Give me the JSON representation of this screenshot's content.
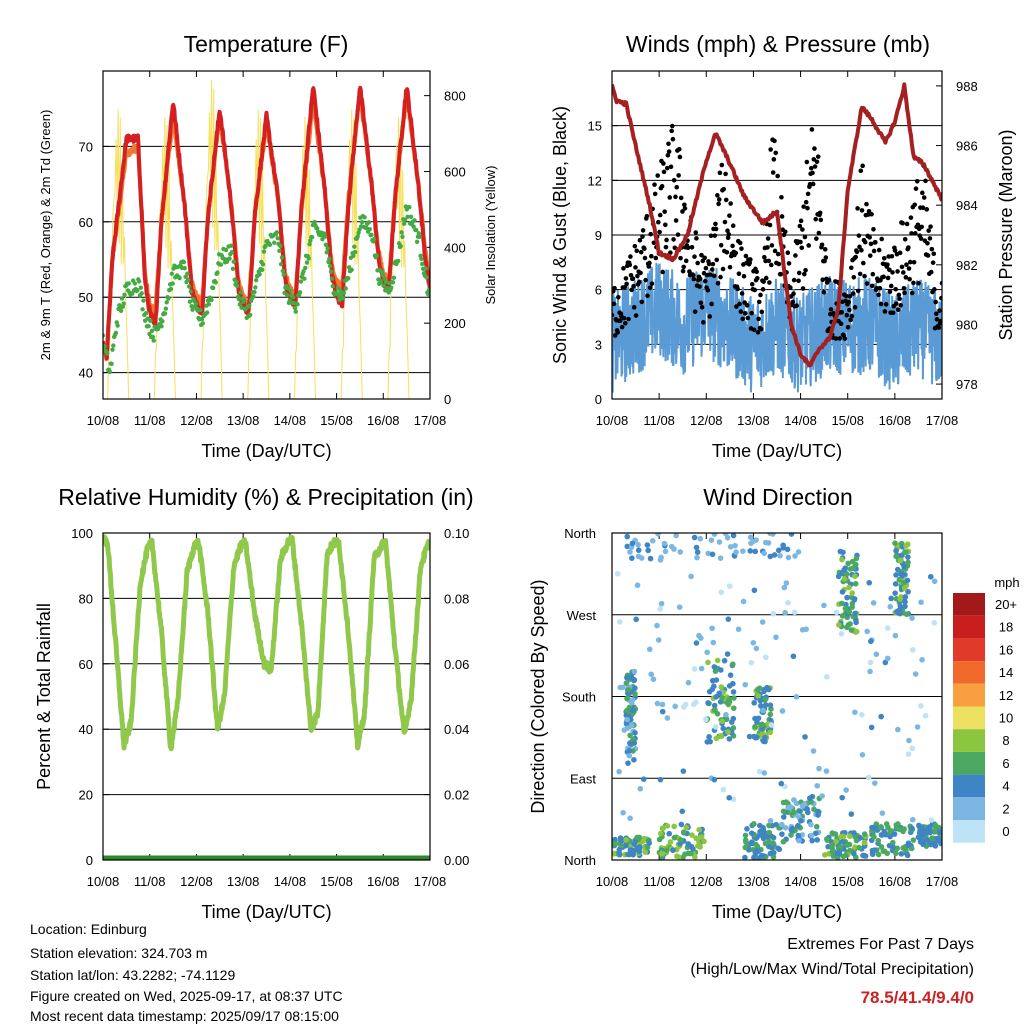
{
  "chart_data": [
    {
      "type": "line",
      "title": "Temperature (F)",
      "xlabel": "Time (Day/UTC)",
      "ylabel": "2m & 9m T (Red, Orange) & 2m Td (Green)",
      "y2label": "Solar Insolation (Yellow)",
      "x_ticks": [
        "10/08",
        "11/08",
        "12/08",
        "13/08",
        "14/08",
        "15/08",
        "16/08",
        "17/08"
      ],
      "ylim": [
        36.5,
        80
      ],
      "y_ticks": [
        40,
        50,
        60,
        70
      ],
      "y2lim": [
        0,
        865
      ],
      "y2_ticks": [
        0,
        200,
        400,
        600,
        800
      ],
      "grid": "horizontal",
      "series": [
        {
          "name": "2m T",
          "color": "#d42020",
          "x": [
            0,
            0.08,
            0.2,
            0.5,
            0.75,
            0.9,
            1.0,
            1.12,
            1.25,
            1.5,
            1.75,
            1.9,
            2.0,
            2.12,
            2.25,
            2.5,
            2.75,
            2.9,
            3.0,
            3.12,
            3.25,
            3.5,
            3.75,
            3.9,
            4.0,
            4.12,
            4.25,
            4.5,
            4.75,
            4.9,
            5.0,
            5.12,
            5.25,
            5.5,
            5.75,
            5.9,
            6.0,
            6.12,
            6.25,
            6.5,
            6.75,
            6.9,
            7.0
          ],
          "y": [
            44,
            42,
            55,
            71,
            71,
            52,
            48,
            46,
            60,
            76,
            62,
            51,
            49,
            48,
            61,
            75,
            62,
            51,
            49,
            48,
            61,
            74,
            63,
            52,
            50,
            49,
            62,
            78,
            64,
            53,
            50,
            49,
            62,
            78,
            65,
            55,
            52,
            51,
            63,
            78,
            65,
            55,
            51
          ]
        },
        {
          "name": "9m T",
          "color": "#f07830",
          "x": [
            0,
            0.08,
            0.2,
            0.5,
            0.75,
            0.9,
            1.0,
            1.12,
            1.25,
            1.5,
            1.75,
            1.9,
            2.0,
            2.12,
            2.25,
            2.5,
            2.75,
            2.9,
            3.0,
            3.12,
            3.25,
            3.5,
            3.75,
            3.9,
            4.0,
            4.12,
            4.25,
            4.5,
            4.75,
            4.9,
            5.0,
            5.12,
            5.25,
            5.5,
            5.75,
            5.9,
            6.0,
            6.12,
            6.25,
            6.5,
            6.75,
            6.9,
            7.0
          ],
          "y": [
            43,
            42,
            55,
            69,
            70,
            53,
            49,
            48,
            60,
            74,
            62,
            52,
            50,
            49,
            61,
            74,
            62,
            52,
            50,
            49,
            61,
            73,
            63,
            53,
            51,
            50,
            62,
            76,
            64,
            54,
            52,
            51,
            63,
            77,
            65,
            56,
            53,
            52,
            63,
            77,
            65,
            56,
            51
          ]
        },
        {
          "name": "2m Td",
          "color": "#44aa44",
          "x": [
            0,
            0.15,
            0.3,
            0.5,
            0.75,
            0.9,
            1.0,
            1.12,
            1.3,
            1.5,
            1.75,
            1.9,
            2.0,
            2.12,
            2.3,
            2.5,
            2.75,
            2.9,
            3.0,
            3.12,
            3.3,
            3.5,
            3.75,
            3.9,
            4.0,
            4.12,
            4.3,
            4.5,
            4.75,
            4.9,
            5.0,
            5.12,
            5.3,
            5.5,
            5.75,
            5.9,
            6.0,
            6.12,
            6.3,
            6.5,
            6.75,
            6.9,
            7.0
          ],
          "y": [
            44,
            40,
            47,
            51,
            52,
            48,
            46,
            45,
            48,
            53,
            54,
            49,
            48,
            47,
            50,
            55,
            56,
            50,
            49,
            48,
            52,
            57,
            58,
            51,
            50,
            49,
            53,
            59,
            58,
            52,
            51,
            50,
            54,
            60,
            59,
            53,
            52,
            51,
            55,
            62,
            58,
            53,
            50
          ]
        },
        {
          "name": "Solar Insolation",
          "color": "#f6e05a",
          "x": [
            0.1,
            0.25,
            0.55,
            0.82,
            1.1,
            1.25,
            1.55,
            1.82,
            2.1,
            2.25,
            2.55,
            2.82,
            3.1,
            3.25,
            3.55,
            3.82,
            4.1,
            4.25,
            4.55,
            4.82,
            5.1,
            5.25,
            5.55,
            5.82,
            6.1,
            6.25,
            6.55,
            6.82
          ],
          "y": [
            0,
            780,
            0,
            0,
            0,
            760,
            0,
            0,
            0,
            860,
            0,
            0,
            0,
            780,
            0,
            0,
            0,
            760,
            0,
            0,
            0,
            780,
            0,
            0,
            0,
            760,
            0,
            0
          ]
        }
      ]
    },
    {
      "type": "line",
      "title": "Winds (mph) & Pressure (mb)",
      "xlabel": "Time (Day/UTC)",
      "ylabel": "Sonic Wind & Gust (Blue, Black)",
      "y2label": "Station Pressure (Maroon)",
      "x_ticks": [
        "10/08",
        "11/08",
        "12/08",
        "13/08",
        "14/08",
        "15/08",
        "16/08",
        "17/08"
      ],
      "ylim": [
        0,
        18
      ],
      "y_ticks": [
        0,
        3,
        6,
        9,
        12,
        15
      ],
      "y2lim": [
        977.5,
        988.5
      ],
      "y2_ticks": [
        978,
        980,
        982,
        984,
        986,
        988
      ],
      "grid": "horizontal",
      "series": [
        {
          "name": "Sonic Wind",
          "color": "#5b9bd5",
          "x": [
            0,
            0.5,
            1.0,
            1.5,
            2.0,
            2.5,
            3.0,
            3.5,
            4.0,
            4.5,
            5.0,
            5.5,
            6.0,
            6.5,
            7.0
          ],
          "y": [
            3,
            4,
            5,
            4,
            5,
            4,
            3,
            4,
            3,
            4,
            4,
            4,
            3,
            4,
            3
          ]
        },
        {
          "name": "Gust",
          "color": "#000000",
          "x": [
            0.1,
            0.5,
            0.8,
            1.3,
            1.5,
            1.7,
            2.0,
            2.4,
            2.7,
            3.2,
            3.4,
            3.8,
            4.3,
            4.6,
            5.0,
            5.3,
            5.6,
            6.0,
            6.3,
            6.6,
            6.9
          ],
          "y": [
            6,
            8,
            10,
            14,
            12,
            9,
            7,
            13,
            8,
            6,
            14,
            6,
            15,
            6,
            6,
            12,
            8,
            8,
            10,
            12,
            6
          ]
        },
        {
          "name": "Station Pressure",
          "color": "#a52020",
          "x": [
            0,
            0.1,
            0.3,
            0.5,
            0.8,
            1.0,
            1.3,
            1.6,
            2.0,
            2.2,
            2.5,
            2.8,
            3.2,
            3.5,
            3.8,
            4.0,
            4.2,
            4.4,
            4.6,
            4.8,
            5.0,
            5.3,
            5.5,
            5.8,
            6.0,
            6.2,
            6.4,
            6.6,
            6.8,
            7.0
          ],
          "y": [
            988,
            987.5,
            987.4,
            986,
            984,
            982.4,
            982.2,
            983,
            985.5,
            986.4,
            985.4,
            984.3,
            983.4,
            983.8,
            980,
            979,
            978.6,
            979.2,
            979.5,
            980.5,
            984.5,
            987.3,
            986.9,
            986.1,
            986.8,
            988,
            985.6,
            985.4,
            984.8,
            984.2
          ]
        }
      ]
    },
    {
      "type": "line",
      "title": "Relative Humidity (%) & Precipitation (in)",
      "xlabel": "Time (Day/UTC)",
      "ylabel": "Percent & Total Rainfall",
      "x_ticks": [
        "10/08",
        "11/08",
        "12/08",
        "13/08",
        "14/08",
        "15/08",
        "16/08",
        "17/08"
      ],
      "ylim": [
        0,
        100
      ],
      "y_ticks": [
        0,
        20,
        40,
        60,
        80,
        100
      ],
      "y2lim": [
        0,
        0.1
      ],
      "y2_ticks": [
        "0.00",
        "0.02",
        "0.04",
        "0.06",
        "0.08",
        "0.10"
      ],
      "grid": "horizontal",
      "series": [
        {
          "name": "Relative Humidity",
          "color": "#8fc84a",
          "x": [
            0,
            0.1,
            0.25,
            0.45,
            0.6,
            0.8,
            0.95,
            1.05,
            1.25,
            1.45,
            1.6,
            1.8,
            1.95,
            2.05,
            2.25,
            2.45,
            2.6,
            2.8,
            2.95,
            3.05,
            3.25,
            3.45,
            3.6,
            3.8,
            3.95,
            4.05,
            4.25,
            4.45,
            4.6,
            4.8,
            4.95,
            5.05,
            5.25,
            5.45,
            5.6,
            5.8,
            5.95,
            6.05,
            6.25,
            6.45,
            6.6,
            6.8,
            6.95,
            7.0
          ],
          "y": [
            98,
            97,
            70,
            35,
            42,
            85,
            95,
            97,
            70,
            34,
            48,
            88,
            96,
            97,
            75,
            40,
            50,
            90,
            96,
            97,
            75,
            60,
            58,
            92,
            97,
            98,
            72,
            40,
            45,
            94,
            97,
            97,
            70,
            35,
            45,
            92,
            96,
            97,
            65,
            38,
            50,
            90,
            96,
            97
          ]
        },
        {
          "name": "Precipitation",
          "color": "#2a8a2a",
          "x": [
            0,
            7
          ],
          "y": [
            0,
            0
          ]
        }
      ]
    },
    {
      "type": "scatter",
      "title": "Wind Direction",
      "xlabel": "Time (Day/UTC)",
      "ylabel": "Direction (Colored By Speed)",
      "x_ticks": [
        "10/08",
        "11/08",
        "12/08",
        "13/08",
        "14/08",
        "15/08",
        "16/08",
        "17/08"
      ],
      "y_ticks": [
        "North",
        "East",
        "South",
        "West",
        "North"
      ],
      "ylim": [
        0,
        360
      ],
      "grid": "horizontal",
      "colorbar": {
        "unit": "mph",
        "labels": [
          "20+",
          "18",
          "16",
          "14",
          "12",
          "10",
          "8",
          "6",
          "4",
          "2",
          "0"
        ],
        "colors": [
          "#a31818",
          "#c81e1e",
          "#e03a2a",
          "#f26a2a",
          "#f8a040",
          "#ece060",
          "#8cc63e",
          "#4aa860",
          "#3f84c4",
          "#7cb7e4",
          "#bee3f6"
        ]
      },
      "clusters": [
        {
          "x": [
            0,
            0.8
          ],
          "dir": [
            335,
            355
          ],
          "speed": [
            3,
            8
          ]
        },
        {
          "x": [
            0.3,
            0.5
          ],
          "dir": [
            150,
            250
          ],
          "speed": [
            2,
            7
          ]
        },
        {
          "x": [
            1.0,
            2.0
          ],
          "dir": [
            320,
            358
          ],
          "speed": [
            3,
            9
          ]
        },
        {
          "x": [
            2.0,
            2.6
          ],
          "dir": [
            140,
            230
          ],
          "speed": [
            3,
            8
          ]
        },
        {
          "x": [
            2.8,
            3.6
          ],
          "dir": [
            320,
            358
          ],
          "speed": [
            3,
            6
          ]
        },
        {
          "x": [
            3.0,
            3.4
          ],
          "dir": [
            170,
            230
          ],
          "speed": [
            3,
            8
          ]
        },
        {
          "x": [
            3.6,
            4.4
          ],
          "dir": [
            290,
            340
          ],
          "speed": [
            2,
            7
          ]
        },
        {
          "x": [
            4.5,
            5.4
          ],
          "dir": [
            330,
            358
          ],
          "speed": [
            3,
            8
          ]
        },
        {
          "x": [
            4.8,
            5.2
          ],
          "dir": [
            20,
            110
          ],
          "speed": [
            3,
            8
          ]
        },
        {
          "x": [
            5.5,
            6.4
          ],
          "dir": [
            320,
            355
          ],
          "speed": [
            3,
            7
          ]
        },
        {
          "x": [
            6.0,
            6.3
          ],
          "dir": [
            10,
            90
          ],
          "speed": [
            3,
            8
          ]
        },
        {
          "x": [
            6.5,
            7.0
          ],
          "dir": [
            320,
            345
          ],
          "speed": [
            3,
            6
          ]
        },
        {
          "x": [
            0.2,
            4.0
          ],
          "dir": [
            0,
            30
          ],
          "speed": [
            1,
            5
          ]
        },
        {
          "x": [
            0.0,
            7.0
          ],
          "dir": [
            40,
            320
          ],
          "speed": [
            0,
            4
          ]
        }
      ]
    }
  ],
  "info": {
    "location": "Location: Edinburg",
    "elevation": "Station elevation: 324.703 m",
    "latlon": "Station lat/lon: 43.2282; -74.1129",
    "created": "Figure created on Wed, 2025-09-17, at 08:37 UTC",
    "recent": "Most recent data timestamp: 2025/09/17 08:15:00"
  },
  "extremes": {
    "heading": "Extremes For Past 7 Days",
    "subheading": "(High/Low/Max Wind/Total Precipitation)",
    "values": "78.5/41.4/9.4/0",
    "values_color": "#cc2222"
  }
}
